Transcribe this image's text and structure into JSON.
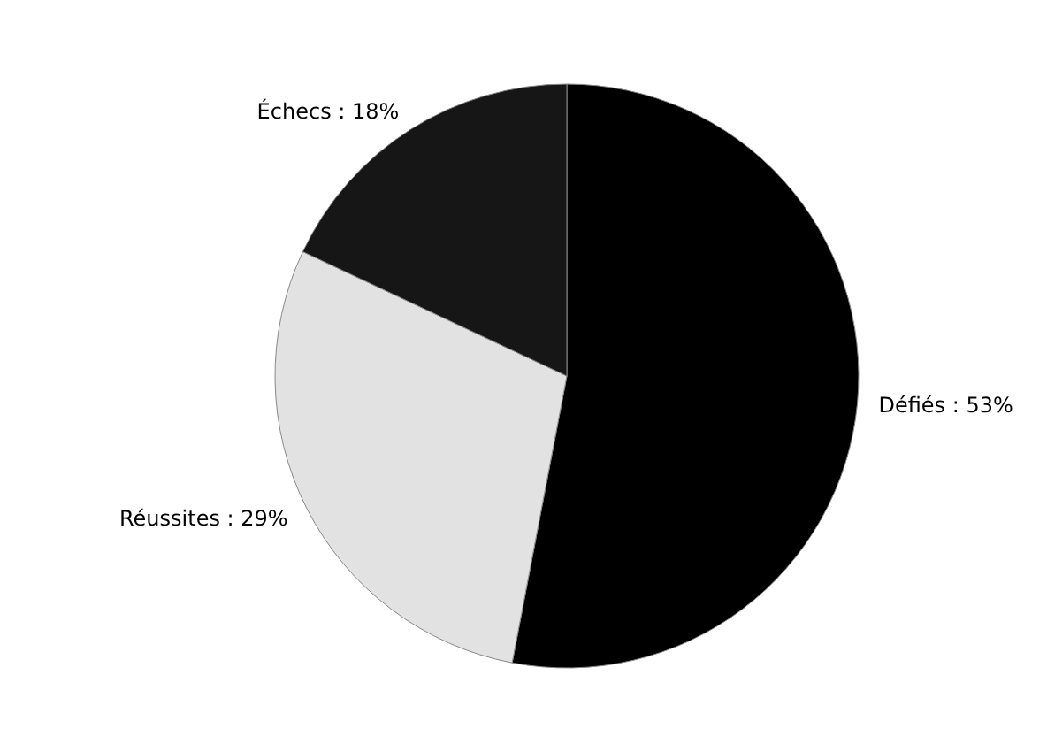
{
  "chart_data": {
    "type": "pie",
    "categories": [
      "Défiés",
      "Réussites",
      "Échecs"
    ],
    "values": [
      53,
      29,
      18
    ],
    "colors": [
      "#000000",
      "#e2e2e2",
      "#161616"
    ],
    "value_labels": [
      "53%",
      "29%",
      "18%"
    ]
  }
}
